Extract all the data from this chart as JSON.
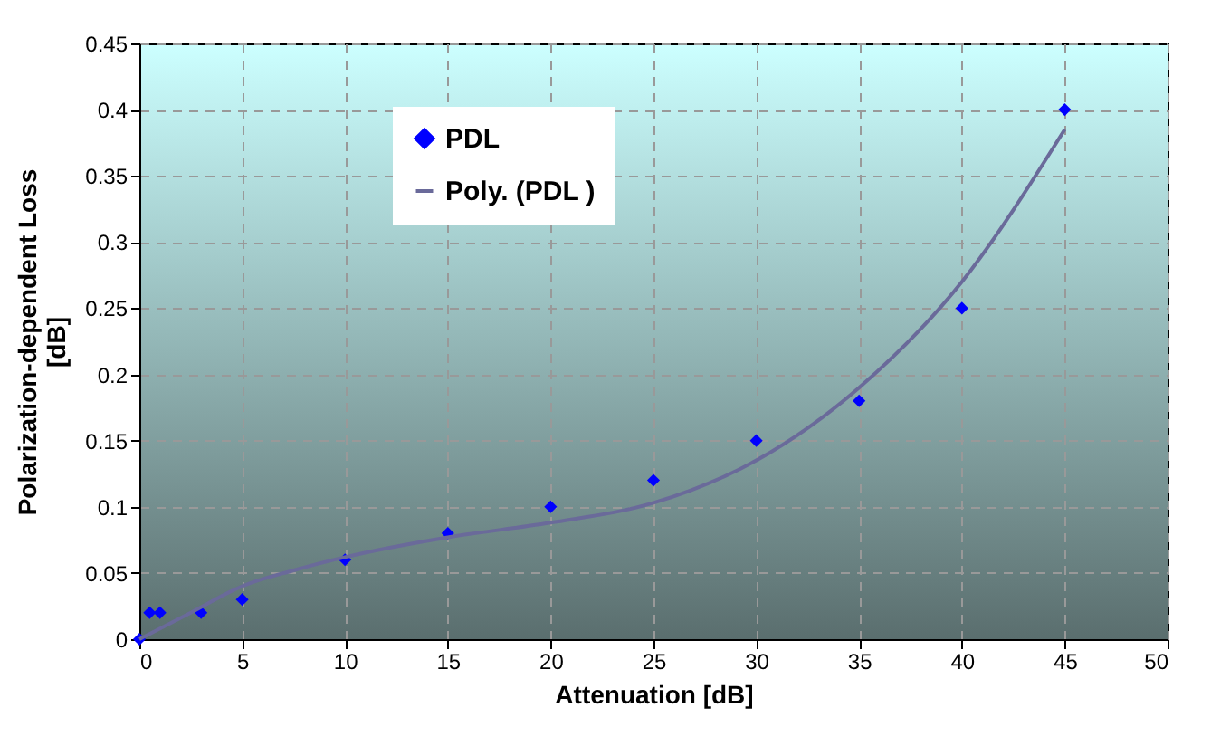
{
  "chart_data": {
    "type": "scatter",
    "xlabel": "Attenuation [dB]",
    "ylabel": "Polarization-dependent Loss [dB]",
    "xlim": [
      0,
      50
    ],
    "xticks": [
      0,
      5,
      10,
      15,
      20,
      25,
      30,
      35,
      40,
      45,
      50
    ],
    "ylim": [
      0,
      0.45
    ],
    "yticks": [
      0,
      0.05,
      0.1,
      0.15,
      0.2,
      0.25,
      0.3,
      0.35,
      0.4,
      0.45
    ],
    "grid": true,
    "legend": "top",
    "series": [
      {
        "name": "PDL",
        "marker": "diamond",
        "color": "#0000ff",
        "x": [
          0,
          0.5,
          1,
          3,
          5,
          10,
          15,
          20,
          25,
          30,
          35,
          40,
          45
        ],
        "values": [
          0,
          0.02,
          0.02,
          0.02,
          0.03,
          0.06,
          0.08,
          0.1,
          0.12,
          0.15,
          0.18,
          0.25,
          0.4
        ]
      },
      {
        "name": "Poly. (PDL )",
        "type": "line",
        "line_style": "solid",
        "color": "#6a6a9a",
        "x": [
          0,
          2.5,
          5,
          7.5,
          10,
          15,
          20,
          25,
          30,
          35,
          40,
          45
        ],
        "values": [
          0,
          0.02,
          0.04,
          0.052,
          0.062,
          0.077,
          0.088,
          0.103,
          0.135,
          0.19,
          0.27,
          0.385
        ]
      }
    ]
  }
}
